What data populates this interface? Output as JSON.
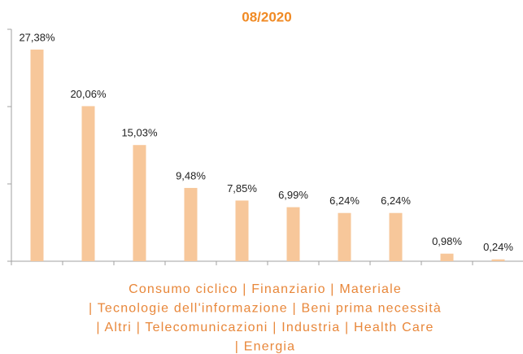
{
  "chart_data": {
    "type": "bar",
    "title": "08/2020",
    "values": [
      27.38,
      20.06,
      15.03,
      9.48,
      7.85,
      6.99,
      6.24,
      6.24,
      0.98,
      0.24
    ],
    "value_labels": [
      "27,38%",
      "20,06%",
      "15,03%",
      "9,48%",
      "7,85%",
      "6,99%",
      "6,24%",
      "6,24%",
      "0,98%",
      "0,24%"
    ],
    "color": "#f7c79a",
    "ylim": [
      0,
      30
    ],
    "yticks": [
      0,
      10,
      20,
      30
    ],
    "grid": false,
    "caption": [
      "Consumo ciclico | Finanziario  | Materiale",
      "| Tecnologie dell'informazione | Beni prima necessità",
      "| Altri | Telecomunicazioni | Industria | Health Care",
      "| Energia"
    ]
  }
}
